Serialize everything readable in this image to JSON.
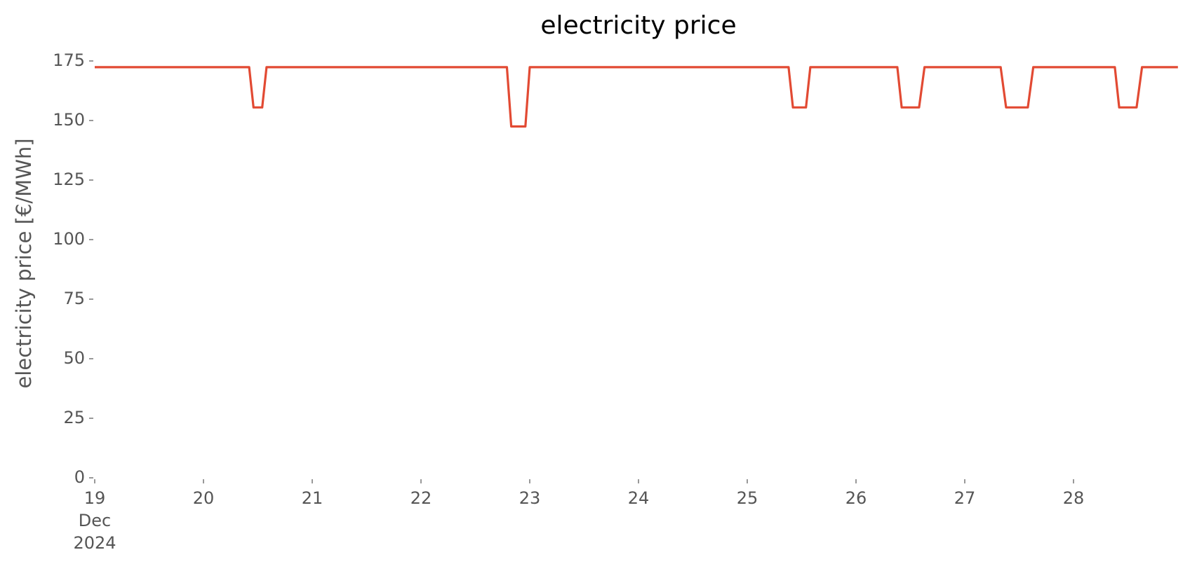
{
  "chart_data": {
    "type": "line",
    "title": "electricity price",
    "ylabel": "electricity price [€/MWh]",
    "x": [
      19,
      20.42,
      20.46,
      20.54,
      20.58,
      22.79,
      22.83,
      22.96,
      23,
      25.38,
      25.42,
      25.54,
      25.58,
      26.38,
      26.42,
      26.58,
      26.63,
      27.33,
      27.38,
      27.58,
      27.63,
      28.38,
      28.42,
      28.58,
      28.63,
      28.96
    ],
    "series": [
      {
        "name": "electricity price",
        "color": "#e24a33",
        "values": [
          172.4,
          172.4,
          155.5,
          155.5,
          172.4,
          172.4,
          147.5,
          147.5,
          172.4,
          172.4,
          155.5,
          155.5,
          172.4,
          172.4,
          155.5,
          155.5,
          172.4,
          172.4,
          155.5,
          155.5,
          172.4,
          172.4,
          155.5,
          155.5,
          172.4,
          172.4
        ]
      }
    ],
    "xlim": [
      19,
      29
    ],
    "xticks": [
      19,
      20,
      21,
      22,
      23,
      24,
      25,
      26,
      27,
      28
    ],
    "xtick_sublabels": [
      "Dec",
      "2024"
    ],
    "ylim": [
      0,
      175
    ],
    "yticks": [
      0,
      25,
      50,
      75,
      100,
      125,
      150,
      175
    ],
    "grid": false
  }
}
